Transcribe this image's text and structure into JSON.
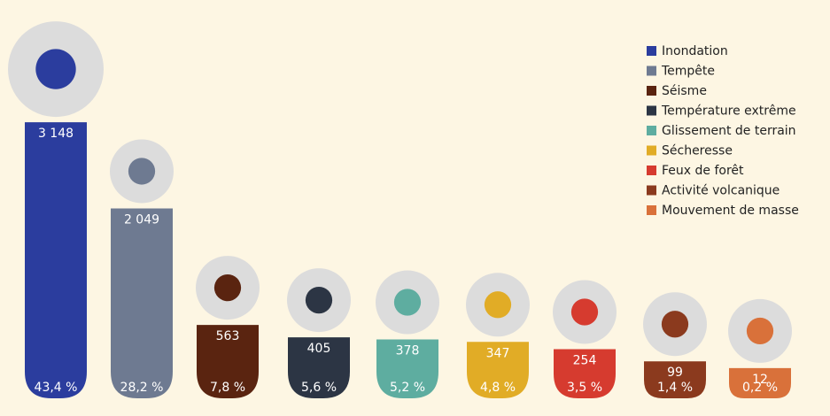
{
  "chart_data": {
    "type": "bar",
    "categories": [
      "Inondation",
      "Tempête",
      "Séisme",
      "Température extrême",
      "Glissement de terrain",
      "Sécheresse",
      "Feux de forêt",
      "Activité volcanique",
      "Mouvement de masse"
    ],
    "values": [
      3148,
      2049,
      563,
      405,
      378,
      347,
      254,
      99,
      12
    ],
    "value_labels": [
      "3 148",
      "2 049",
      "563",
      "405",
      "378",
      "347",
      "254",
      "99",
      "12"
    ],
    "shares": [
      43.4,
      28.2,
      7.8,
      5.6,
      5.2,
      4.8,
      3.5,
      1.4,
      0.2
    ],
    "share_labels": [
      "43,4 %",
      "28,2 %",
      "7,8 %",
      "5,6 %",
      "5,2 %",
      "4,8 %",
      "3,5 %",
      "1,4 %",
      "0,2 %"
    ],
    "colors": [
      "#2b3d9e",
      "#6e7a91",
      "#5a2410",
      "#2c3544",
      "#5eada0",
      "#e1ac26",
      "#d63b2f",
      "#8b3a1e",
      "#d9713a"
    ],
    "legend": "top-right"
  }
}
